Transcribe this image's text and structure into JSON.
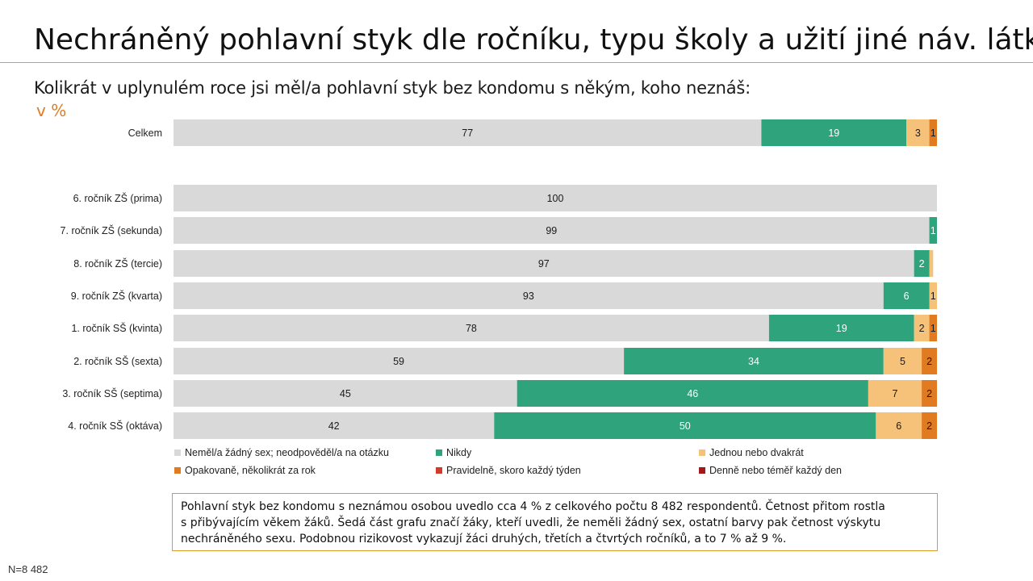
{
  "header": {
    "title": "Nechráněný pohlavní styk dle ročníku, typu školy a užití jiné náv. látky",
    "subtitle": "Kolikrát v uplynulém roce jsi měl/a pohlavní styk bez kondomu s někým, koho neznáš:",
    "unit": "v %"
  },
  "chart_data": {
    "type": "bar",
    "orientation": "horizontal",
    "stacked": true,
    "xlim": [
      0,
      100
    ],
    "grid": false,
    "legend_position": "bottom",
    "categories": [
      "Celkem",
      "6. ročník ZŠ (prima)",
      "7. ročník ZŠ (sekunda)",
      "8. ročník ZŠ (tercie)",
      "9. ročník ZŠ (kvarta)",
      "1. ročník SŠ (kvinta)",
      "2. ročník SŠ (sexta)",
      "3. ročník SŠ (septima)",
      "4. ročník SŠ (oktáva)"
    ],
    "series": [
      {
        "name": "Neměl/a žádný sex; neodpověděl/a na otázku",
        "color": "#d9d9d9",
        "label_color": "#1a1a1a",
        "values": [
          77,
          100,
          99,
          97,
          93,
          78,
          59,
          45,
          42
        ]
      },
      {
        "name": "Nikdy",
        "color": "#2fa37c",
        "label_color": "#ffffff",
        "values": [
          19,
          0,
          1,
          2,
          6,
          19,
          34,
          46,
          50
        ]
      },
      {
        "name": "Jednou nebo dvakrát",
        "color": "#f6c27a",
        "label_color": "#1a1a1a",
        "values": [
          3,
          0,
          0,
          0.5,
          1,
          2,
          5,
          7,
          6
        ]
      },
      {
        "name": "Opakovaně, několikrát za rok",
        "color": "#e07b22",
        "label_color": "#1a1a1a",
        "values": [
          1,
          0,
          0,
          0,
          0,
          1,
          2,
          2,
          2
        ]
      },
      {
        "name": "Pravidelně, skoro každý týden",
        "color": "#d23b2b",
        "label_color": "#ffffff",
        "values": [
          0,
          0,
          0,
          0,
          0,
          0,
          0,
          0,
          0
        ]
      },
      {
        "name": "Denně nebo téměř každý den",
        "color": "#a01818",
        "label_color": "#ffffff",
        "values": [
          0,
          0,
          0,
          0,
          0,
          0,
          0,
          0,
          0
        ]
      }
    ],
    "data_labels": [
      [
        "77",
        "19",
        "3",
        "1",
        "",
        ""
      ],
      [
        "100",
        "",
        "",
        "",
        "",
        ""
      ],
      [
        "99",
        "1",
        "",
        "",
        "",
        ""
      ],
      [
        "97",
        "2",
        "",
        "",
        "",
        ""
      ],
      [
        "93",
        "6",
        "1",
        "",
        "",
        ""
      ],
      [
        "78",
        "19",
        "2",
        "1",
        "",
        ""
      ],
      [
        "59",
        "34",
        "5",
        "2",
        "",
        ""
      ],
      [
        "45",
        "46",
        "7",
        "2",
        "",
        ""
      ],
      [
        "42",
        "50",
        "6",
        "2",
        "",
        ""
      ]
    ]
  },
  "note": {
    "line1": "Pohlavní styk bez kondomu s neznámou osobou uvedlo cca 4 % z celkového počtu 8 482 respondentů. Četnost přitom rostla",
    "line2": "s přibývajícím věkem žáků. Šedá část grafu značí žáky, kteří uvedli, že neměli žádný sex, ostatní barvy pak četnost výskytu",
    "line3": "nechráněného sexu. Podobnou rizikovost vykazují žáci druhých, třetích a čtvrtých ročníků, a to 7 % až 9 %."
  },
  "footer": {
    "n_label": "N=8 482"
  }
}
